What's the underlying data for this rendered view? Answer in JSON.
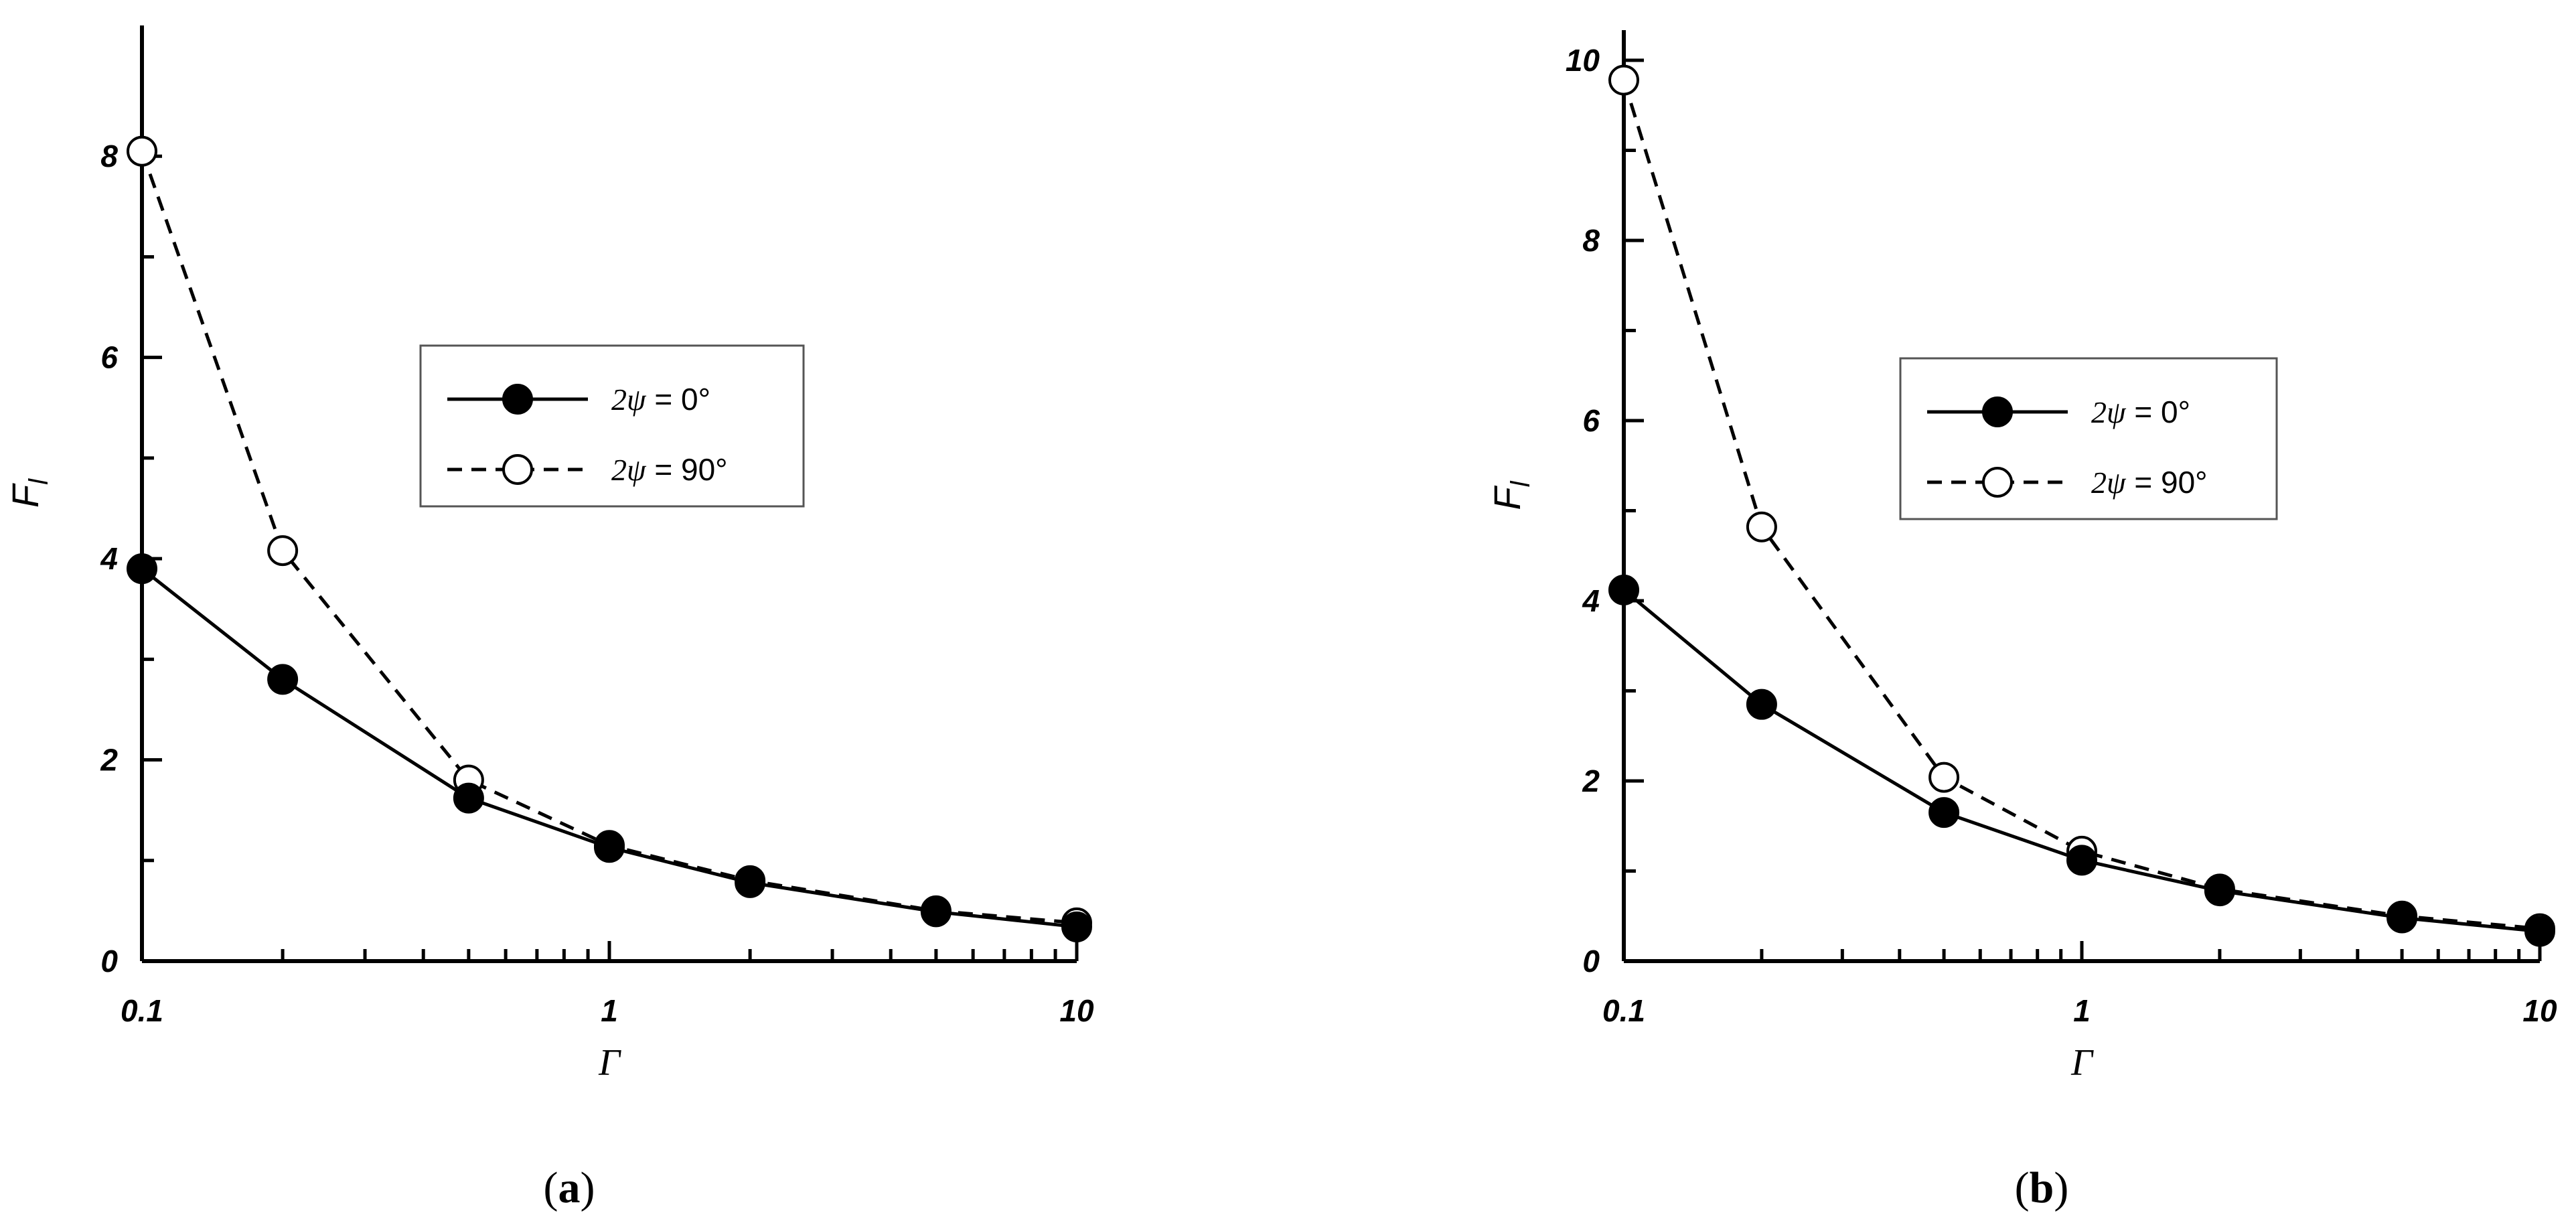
{
  "chart_data": [
    {
      "type": "line",
      "panel_label": "a",
      "xlabel": "Γ",
      "ylabel": "F",
      "ylabel_sub": "l",
      "x_scale": "log",
      "xlim": [
        0.1,
        10
      ],
      "ylim": [
        0,
        9
      ],
      "x_ticks": [
        0.1,
        1,
        10
      ],
      "x_tick_labels": [
        "0.1",
        "1",
        "10"
      ],
      "y_ticks": [
        0,
        2,
        4,
        6,
        8
      ],
      "y_tick_labels": [
        "0",
        "2",
        "4",
        "6",
        "8"
      ],
      "grid": false,
      "legend_position": "center-right",
      "series": [
        {
          "name": "2ψ = 0°",
          "psi_label": "2ψ",
          "value_label": "= 0°",
          "line_style": "solid",
          "marker": "filled-circle",
          "x": [
            0.1,
            0.2,
            0.5,
            1,
            2,
            5,
            10
          ],
          "y": [
            3.9,
            2.8,
            1.62,
            1.13,
            0.78,
            0.49,
            0.34
          ]
        },
        {
          "name": "2ψ = 90°",
          "psi_label": "2ψ",
          "value_label": "= 90°",
          "line_style": "dashed",
          "marker": "open-circle",
          "x": [
            0.1,
            0.2,
            0.5,
            1,
            2,
            5,
            10
          ],
          "y": [
            8.05,
            4.08,
            1.8,
            1.15,
            0.8,
            0.5,
            0.38
          ]
        }
      ]
    },
    {
      "type": "line",
      "panel_label": "b",
      "xlabel": "Γ",
      "ylabel": "F",
      "ylabel_sub": "l",
      "x_scale": "log",
      "xlim": [
        0.1,
        10
      ],
      "ylim": [
        0,
        10
      ],
      "x_ticks": [
        0.1,
        1,
        10
      ],
      "x_tick_labels": [
        "0.1",
        "1",
        "10"
      ],
      "y_ticks": [
        0,
        2,
        4,
        6,
        8,
        10
      ],
      "y_tick_labels": [
        "0",
        "2",
        "4",
        "6",
        "8",
        "10"
      ],
      "grid": false,
      "legend_position": "center-right",
      "series": [
        {
          "name": "2ψ = 0°",
          "psi_label": "2ψ",
          "value_label": "= 0°",
          "line_style": "solid",
          "marker": "filled-circle",
          "x": [
            0.1,
            0.2,
            0.5,
            1,
            2,
            5,
            10
          ],
          "y": [
            4.12,
            2.85,
            1.65,
            1.12,
            0.78,
            0.48,
            0.33
          ]
        },
        {
          "name": "2ψ = 90°",
          "psi_label": "2ψ",
          "value_label": "= 90°",
          "line_style": "dashed",
          "marker": "open-circle",
          "x": [
            0.1,
            0.2,
            0.5,
            1,
            2,
            5,
            10
          ],
          "y": [
            9.78,
            4.82,
            2.04,
            1.22,
            0.8,
            0.5,
            0.36
          ]
        }
      ]
    }
  ]
}
